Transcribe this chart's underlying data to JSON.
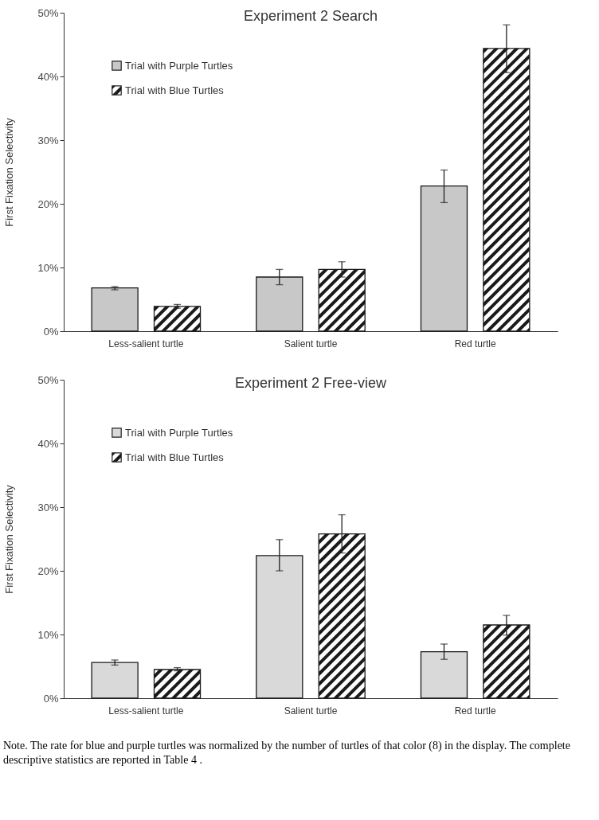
{
  "chart_data": [
    {
      "type": "bar",
      "title": "Experiment 2 Search",
      "ylabel": "First Fixation Selectivity",
      "categories": [
        "Less-salient turtle",
        "Salient turtle",
        "Red turtle"
      ],
      "series": [
        {
          "name": "Trial with Purple Turtles",
          "color": "#c8c8c8",
          "values": [
            6.8,
            8.5,
            22.8
          ],
          "errors": [
            [
              6.5,
              7.0
            ],
            [
              7.3,
              9.7
            ],
            [
              20.2,
              25.3
            ]
          ]
        },
        {
          "name": "Trial with Blue Turtles",
          "color": "#1a1a1a",
          "values": [
            3.9,
            9.7,
            44.4
          ],
          "errors": [
            [
              3.6,
              4.2
            ],
            [
              8.5,
              10.9
            ],
            [
              40.6,
              48.1
            ]
          ]
        }
      ],
      "ylim": [
        0,
        50
      ],
      "yticks": [
        {
          "value": 0,
          "label": "0%"
        },
        {
          "value": 10,
          "label": "10%"
        },
        {
          "value": 20,
          "label": "20%"
        },
        {
          "value": 30,
          "label": "30%"
        },
        {
          "value": 40,
          "label": "40%"
        },
        {
          "value": 50,
          "label": "50%"
        }
      ],
      "grid": false,
      "legend": "top left"
    },
    {
      "type": "bar",
      "title": "Experiment 2 Free-view",
      "ylabel": "First Fixation Selectivity",
      "categories": [
        "Less-salient turtle",
        "Salient turtle",
        "Red turtle"
      ],
      "series": [
        {
          "name": "Trial with Purple Turtles",
          "color": "#d9d9d9",
          "values": [
            5.6,
            22.4,
            7.3
          ],
          "errors": [
            [
              5.2,
              6.0
            ],
            [
              20.0,
              24.9
            ],
            [
              6.1,
              8.5
            ]
          ]
        },
        {
          "name": "Trial with Blue Turtles",
          "color": "#1a1a1a",
          "values": [
            4.5,
            25.8,
            11.5
          ],
          "errors": [
            [
              4.3,
              4.8
            ],
            [
              22.8,
              28.8
            ],
            [
              9.9,
              13.0
            ]
          ]
        }
      ],
      "ylim": [
        0,
        50
      ],
      "yticks": [
        {
          "value": 0,
          "label": "0%"
        },
        {
          "value": 10,
          "label": "10%"
        },
        {
          "value": 20,
          "label": "20%"
        },
        {
          "value": 30,
          "label": "30%"
        },
        {
          "value": 40,
          "label": "40%"
        },
        {
          "value": 50,
          "label": "50%"
        }
      ],
      "grid": false,
      "legend": "top left",
      "annotations": [
        "Note. The rate for blue and purple turtles was normalized by the number of turtles of that color (8) in the display. The complete descriptive statistics are reported in Table 4 ."
      ]
    }
  ]
}
